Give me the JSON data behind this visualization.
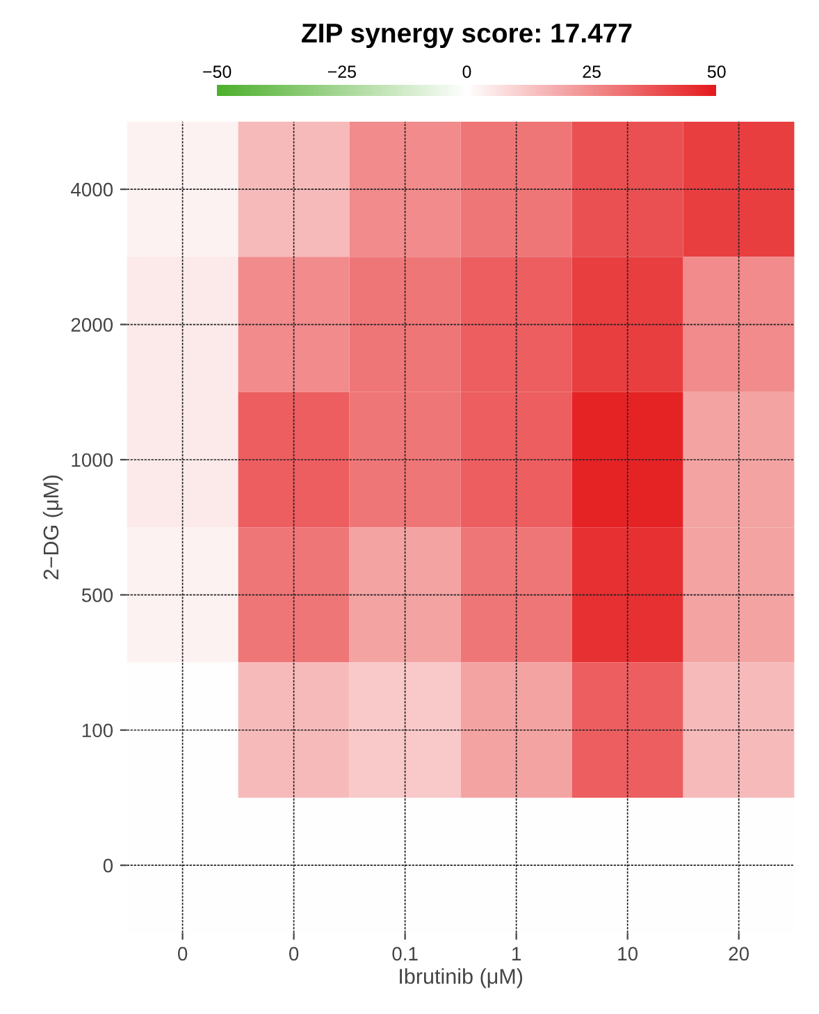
{
  "chart_data": {
    "type": "heatmap",
    "title": "ZIP synergy score: 17.477",
    "xlabel": "Ibrutinib (μM)",
    "ylabel": "2−DG (μM)",
    "categories": [
      "0",
      "0",
      "0.1",
      "1",
      "10",
      "20"
    ],
    "y_categories": [
      "4000",
      "2000",
      "1000",
      "500",
      "100",
      "0"
    ],
    "cells": [
      [
        3,
        15,
        25,
        30,
        38,
        42
      ],
      [
        5,
        25,
        30,
        35,
        42,
        25
      ],
      [
        5,
        35,
        30,
        35,
        48,
        20
      ],
      [
        3,
        30,
        20,
        30,
        45,
        20
      ],
      [
        0,
        15,
        12,
        20,
        35,
        15
      ],
      [
        0,
        0,
        0,
        0,
        0,
        0
      ]
    ],
    "clim": [
      -50,
      50
    ],
    "cticks": [
      -50,
      -25,
      0,
      25,
      50
    ],
    "colors": [
      "#4daf2c",
      "#ffffff",
      "#e41a1c"
    ],
    "grid": true
  }
}
